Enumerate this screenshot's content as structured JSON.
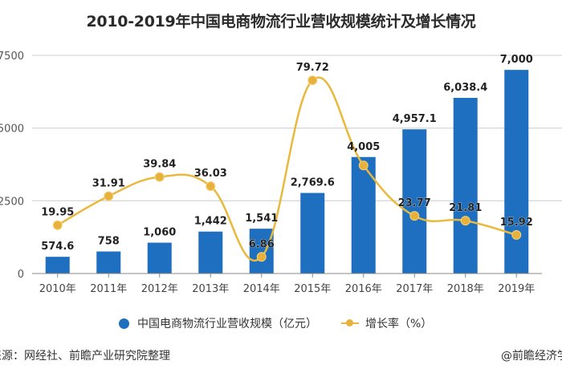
{
  "title": "2010-2019年中国电商物流行业营收规模统计及增长情况",
  "legend": {
    "bar_label": "中国电商物流行业营收规模（亿元）",
    "line_label": "增长率（%）"
  },
  "footer": {
    "source": "来源：网经社、前瞻产业研究院整理",
    "credit": "@前瞻经济学"
  },
  "colors": {
    "bar": "#1e6fbf",
    "line": "#e8b93c",
    "marker": "#e8b13c",
    "grid": "#d9d9d9",
    "text": "#333333"
  },
  "chart_data": {
    "type": "bar",
    "title": "2010-2019年中国电商物流行业营收规模统计及增长情况",
    "categories": [
      "2010年",
      "2011年",
      "2012年",
      "2013年",
      "2014年",
      "2015年",
      "2016年",
      "2017年",
      "2018年",
      "2019年"
    ],
    "series": [
      {
        "name": "中国电商物流行业营收规模（亿元）",
        "type": "bar",
        "axis": "left",
        "values": [
          574.6,
          758,
          1060,
          1442,
          1541,
          2769.6,
          4005,
          4957.1,
          6038.4,
          7000
        ],
        "labels": [
          "574.6",
          "758",
          "1,060",
          "1,442",
          "1,541",
          "2,769.6",
          "4,005",
          "4,957.1",
          "6,038.4",
          "7,000"
        ]
      },
      {
        "name": "增长率（%）",
        "type": "line",
        "axis": "right",
        "values": [
          19.95,
          31.91,
          39.84,
          36.03,
          6.86,
          79.72,
          44.6,
          23.77,
          21.81,
          15.92
        ],
        "labels": [
          "19.95",
          "31.91",
          "39.84",
          "36.03",
          "6.86",
          "79.72",
          "",
          "23.77",
          "21.81",
          "15.92"
        ]
      }
    ],
    "left_axis": {
      "ticks": [
        "0",
        "2500",
        "5000",
        "7500"
      ],
      "ylim": [
        0,
        7500
      ]
    },
    "right_axis": {
      "ticks": [
        "0",
        "30",
        "60",
        "90"
      ],
      "ylim": [
        0,
        90
      ]
    },
    "xlabel": "",
    "ylabel": "",
    "grid": true,
    "legend_position": "bottom"
  }
}
